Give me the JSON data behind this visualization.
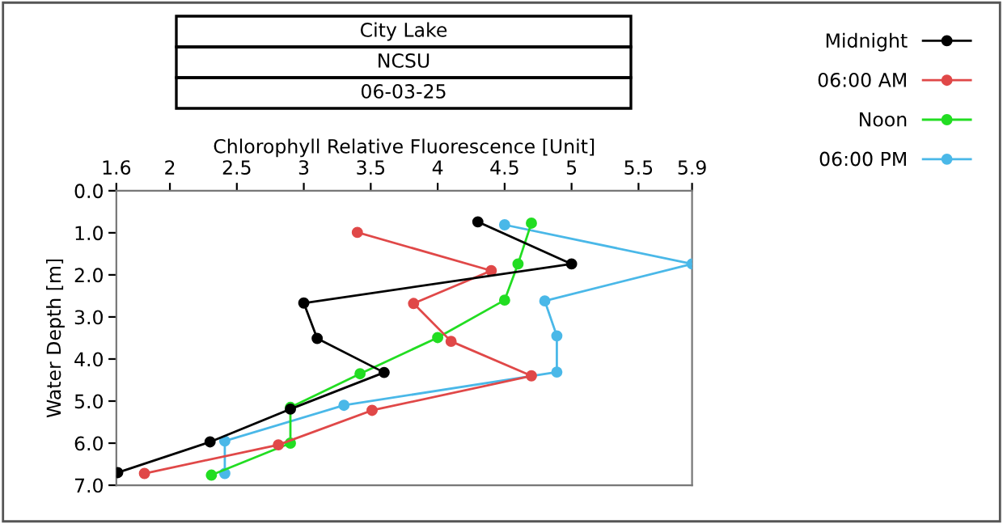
{
  "chart_data": {
    "type": "line",
    "title": "City Lake",
    "subtitle": "NCSU",
    "annotations": [
      "06-03-25"
    ],
    "xlabel": "Chlorophyll Relative Fluorescence [Unit]",
    "ylabel": "Water Depth [m]",
    "xlim": [
      1.6,
      5.9
    ],
    "xticks": [
      1.6,
      2,
      2.5,
      3,
      3.5,
      4,
      4.5,
      5,
      5.5,
      5.9
    ],
    "ylim": [
      7.0,
      0.0
    ],
    "yticks": [
      {
        "value": 0,
        "label": "0.0"
      },
      {
        "value": 1,
        "label": "1.0"
      },
      {
        "value": 2,
        "label": "2.0"
      },
      {
        "value": 3,
        "label": "3.0"
      },
      {
        "value": 4,
        "label": "4.0"
      },
      {
        "value": 5,
        "label": "5.0"
      },
      {
        "value": 6,
        "label": "6.0"
      },
      {
        "value": 7,
        "label": "7.0"
      }
    ],
    "grid": false,
    "legend": "top right",
    "marker": "circle",
    "line_style": "solid",
    "series": [
      {
        "name": "Midnight",
        "color": "#000000",
        "x": [
          4.3,
          5.0,
          3.0,
          3.1,
          3.6,
          2.9,
          2.3,
          1.61
        ],
        "values": [
          0.74,
          1.74,
          2.67,
          3.51,
          4.32,
          5.19,
          5.97,
          6.7
        ]
      },
      {
        "name": "06:00 AM",
        "color": "#e04848",
        "x": [
          3.4,
          4.4,
          3.82,
          4.1,
          4.7,
          3.51,
          2.81,
          1.81
        ],
        "values": [
          0.99,
          1.9,
          2.68,
          3.58,
          4.4,
          5.22,
          6.04,
          6.72
        ]
      },
      {
        "name": "Noon",
        "color": "#22dd22",
        "x": [
          4.7,
          4.6,
          4.5,
          4.0,
          3.42,
          2.9,
          2.9,
          2.31
        ],
        "values": [
          0.77,
          1.74,
          2.6,
          3.49,
          4.35,
          5.15,
          6.0,
          6.76
        ]
      },
      {
        "name": "06:00 PM",
        "color": "#4ab8e8",
        "x": [
          4.5,
          5.9,
          4.8,
          4.89,
          4.89,
          3.3,
          2.41,
          2.41
        ],
        "values": [
          0.81,
          1.74,
          2.62,
          3.45,
          4.31,
          5.1,
          5.95,
          6.72
        ]
      }
    ]
  }
}
